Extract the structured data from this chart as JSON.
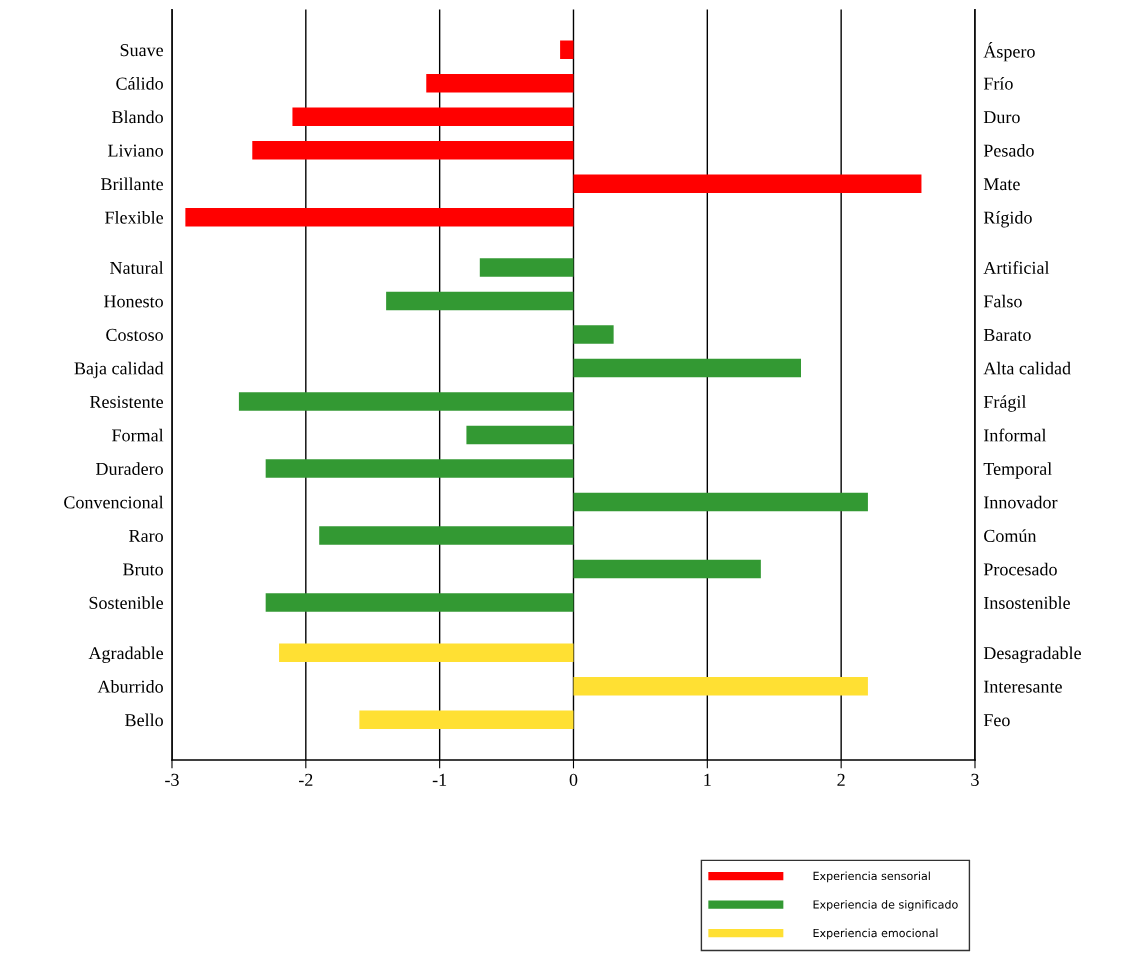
{
  "chart_data": {
    "type": "bar",
    "orientation": "horizontal",
    "categories": [
      "Suave",
      "Cálido",
      "Blando",
      "Liviano",
      "Brillante",
      "Flexible",
      "Natural",
      "Honesto",
      "Costoso",
      "Baja calidad",
      "Resistente",
      "Formal",
      "Duradero",
      "Convencional",
      "Raro",
      "Bruto",
      "Sostenible",
      "Agradable",
      "Aburrido",
      "Bello"
    ],
    "y2_categories": [
      "Áspero",
      "Frío",
      "Duro",
      "Pesado",
      "Mate",
      "Rígido",
      "Artificial",
      "Falso",
      "Barato",
      "Alta calidad",
      "Frágil",
      "Informal",
      "Temporal",
      "Innovador",
      "Común",
      "Procesado",
      "Insostenible",
      "Desagradable",
      "Interesante",
      "Feo"
    ],
    "series": [
      {
        "name": "Experiencia sensorial",
        "color": "#ff0000",
        "values": [
          -0.1,
          -1.1,
          -2.1,
          -2.4,
          2.6,
          -2.9,
          null,
          null,
          null,
          null,
          null,
          null,
          null,
          null,
          null,
          null,
          null,
          null,
          null,
          null
        ]
      },
      {
        "name": "Experiencia de significado",
        "color": "#339933",
        "values": [
          null,
          null,
          null,
          null,
          null,
          null,
          -0.7,
          -1.4,
          0.3,
          1.7,
          -2.5,
          -0.8,
          -2.3,
          2.2,
          -1.9,
          1.4,
          -2.3,
          null,
          null,
          null
        ]
      },
      {
        "name": "Experiencia emocional",
        "color": "#ffe033",
        "values": [
          null,
          null,
          null,
          null,
          null,
          null,
          null,
          null,
          null,
          null,
          null,
          null,
          null,
          null,
          null,
          null,
          null,
          -2.2,
          2.2,
          -1.6
        ]
      }
    ],
    "xlim": [
      -3,
      3
    ],
    "xticks": [
      -3,
      -2,
      -1,
      0,
      1,
      2,
      3
    ],
    "grid": "x",
    "legend": "bottom right"
  }
}
